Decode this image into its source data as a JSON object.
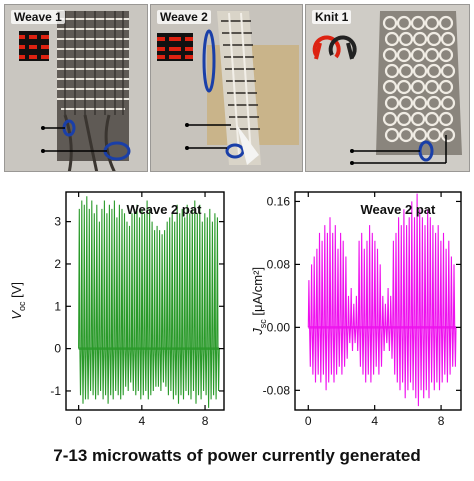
{
  "photos": [
    {
      "label": "Weave 1"
    },
    {
      "label": "Weave 2"
    },
    {
      "label": "Knit 1"
    }
  ],
  "chart_data": [
    {
      "type": "line",
      "title": "",
      "annotation": "Weave 2 pat",
      "xlabel": "",
      "ylabel_main": "V",
      "ylabel_sub": "oc",
      "ylabel_unit": " [V]",
      "xlim": [
        -0.8,
        9.2
      ],
      "ylim": [
        -1.45,
        3.7
      ],
      "xticks": [
        "0",
        "4",
        "8"
      ],
      "xtick_values": [
        0,
        4,
        8
      ],
      "yticks": [
        "-1",
        "0",
        "1",
        "2",
        "3"
      ],
      "ytick_values": [
        -1,
        0,
        1,
        2,
        3
      ],
      "color": "#2a9a2a",
      "grid": false,
      "series": [
        {
          "x_start": 0,
          "x_end": 8.9,
          "cycles": 56,
          "peaks": [
            3.3,
            3.5,
            3.4,
            3.6,
            3.3,
            3.5,
            3.2,
            3.4,
            3.0,
            3.3,
            3.5,
            3.2,
            3.4,
            3.3,
            3.5,
            3.1,
            3.4,
            3.3,
            3.2,
            3.0,
            2.9,
            3.2,
            3.3,
            3.4,
            3.1,
            3.3,
            3.2,
            3.5,
            3.3,
            3.0,
            2.8,
            2.9,
            2.8,
            2.7,
            2.8,
            3.0,
            3.1,
            3.2,
            3.0,
            3.4,
            3.2,
            3.3,
            3.1,
            3.4,
            3.2,
            3.3,
            3.5,
            3.2,
            3.4,
            3.0,
            3.2,
            3.1,
            3.3,
            3.0,
            3.2,
            3.1
          ],
          "troughs": [
            -1.1,
            -1.3,
            -1.2,
            -1.2,
            -1.0,
            -1.1,
            -1.2,
            -1.1,
            -1.0,
            -1.2,
            -1.1,
            -1.3,
            -1.1,
            -1.2,
            -1.0,
            -1.1,
            -1.2,
            -1.1,
            -0.9,
            -1.0,
            -0.8,
            -1.0,
            -1.1,
            -1.0,
            -1.2,
            -1.1,
            -1.0,
            -1.2,
            -1.1,
            -1.0,
            -0.9,
            -0.9,
            -1.0,
            -0.8,
            -0.9,
            -1.1,
            -1.0,
            -1.2,
            -1.1,
            -1.3,
            -1.1,
            -1.2,
            -1.0,
            -1.1,
            -1.2,
            -1.0,
            -1.3,
            -1.1,
            -1.2,
            -1.0,
            -1.1,
            -1.4,
            -1.2,
            -1.1,
            -1.2,
            -1.0
          ]
        }
      ]
    },
    {
      "type": "line",
      "title": "",
      "annotation": "Weave 2 pat",
      "xlabel": "",
      "ylabel_main": "J",
      "ylabel_sub": "sc",
      "ylabel_unit": " [μA/cm²]",
      "xlim": [
        -0.8,
        9.2
      ],
      "ylim": [
        -0.105,
        0.172
      ],
      "xticks": [
        "0",
        "4",
        "8"
      ],
      "xtick_values": [
        0,
        4,
        8
      ],
      "yticks": [
        "-0.08",
        "0.00",
        "0.08",
        "0.16"
      ],
      "ytick_values": [
        -0.08,
        0.0,
        0.08,
        0.16
      ],
      "color": "#ee10ee",
      "grid": false,
      "series": [
        {
          "x_start": 0,
          "x_end": 8.9,
          "cycles": 56,
          "peaks": [
            0.06,
            0.08,
            0.09,
            0.1,
            0.12,
            0.11,
            0.13,
            0.12,
            0.14,
            0.12,
            0.13,
            0.1,
            0.12,
            0.11,
            0.09,
            0.04,
            0.05,
            0.03,
            0.04,
            0.11,
            0.12,
            0.1,
            0.11,
            0.13,
            0.12,
            0.11,
            0.1,
            0.08,
            0.04,
            0.03,
            0.05,
            0.04,
            0.11,
            0.12,
            0.14,
            0.13,
            0.15,
            0.13,
            0.14,
            0.16,
            0.14,
            0.17,
            0.15,
            0.14,
            0.13,
            0.15,
            0.14,
            0.13,
            0.12,
            0.13,
            0.11,
            0.12,
            0.1,
            0.11,
            0.09,
            0.08
          ],
          "troughs": [
            -0.05,
            -0.06,
            -0.07,
            -0.06,
            -0.07,
            -0.06,
            -0.08,
            -0.07,
            -0.06,
            -0.07,
            -0.06,
            -0.05,
            -0.06,
            -0.05,
            -0.04,
            -0.02,
            -0.03,
            -0.02,
            -0.03,
            -0.05,
            -0.06,
            -0.07,
            -0.06,
            -0.07,
            -0.06,
            -0.05,
            -0.06,
            -0.05,
            -0.03,
            -0.02,
            -0.03,
            -0.04,
            -0.06,
            -0.07,
            -0.08,
            -0.07,
            -0.09,
            -0.08,
            -0.07,
            -0.08,
            -0.09,
            -0.1,
            -0.08,
            -0.09,
            -0.08,
            -0.09,
            -0.07,
            -0.08,
            -0.07,
            -0.08,
            -0.07,
            -0.06,
            -0.07,
            -0.06,
            -0.05,
            -0.05
          ]
        }
      ]
    }
  ],
  "caption": "7-13 microwatts of power currently generated"
}
